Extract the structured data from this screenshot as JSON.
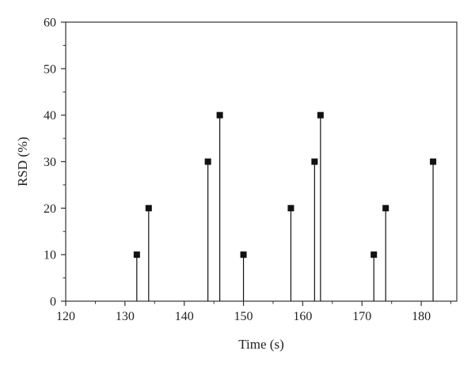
{
  "chart_data": {
    "type": "scatter",
    "style": "stem",
    "xlabel": "Time (s)",
    "ylabel": "RSD (%)",
    "xlim": [
      120,
      186
    ],
    "ylim": [
      0,
      60
    ],
    "xticks": [
      120,
      130,
      140,
      150,
      160,
      170,
      180
    ],
    "yticks": [
      0,
      10,
      20,
      30,
      40,
      50,
      60
    ],
    "grid": false,
    "marker": "square",
    "color": "#111111",
    "points": [
      {
        "x": 132,
        "y": 10
      },
      {
        "x": 134,
        "y": 20
      },
      {
        "x": 144,
        "y": 30
      },
      {
        "x": 146,
        "y": 40
      },
      {
        "x": 150,
        "y": 10
      },
      {
        "x": 158,
        "y": 20
      },
      {
        "x": 162,
        "y": 30
      },
      {
        "x": 163,
        "y": 40
      },
      {
        "x": 172,
        "y": 10
      },
      {
        "x": 174,
        "y": 20
      },
      {
        "x": 182,
        "y": 30
      }
    ]
  }
}
